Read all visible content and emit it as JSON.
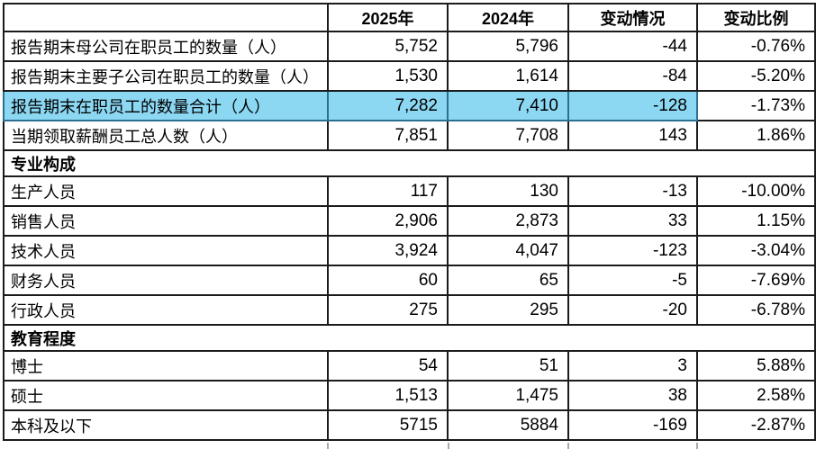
{
  "table": {
    "header": {
      "cols": [
        "",
        "2025年",
        "2024年",
        "变动情况",
        "变动比例"
      ]
    },
    "rows": [
      {
        "label": "报告期末母公司在职员工的数量（人）",
        "y2025": "5,752",
        "y2024": "5,796",
        "change": "-44",
        "ratio": "-0.76%"
      },
      {
        "label": "报告期末主要子公司在职员工的数量（人）",
        "y2025": "1,530",
        "y2024": "1,614",
        "change": "-84",
        "ratio": "-5.20%"
      },
      {
        "label": "报告期末在职员工的数量合计（人）",
        "y2025": "7,282",
        "y2024": "7,410",
        "change": "-128",
        "ratio": "-1.73%",
        "highlight": true
      },
      {
        "label": "当期领取薪酬员工总人数（人）",
        "y2025": "7,851",
        "y2024": "7,708",
        "change": "143",
        "ratio": "1.86%"
      },
      {
        "section": "专业构成"
      },
      {
        "label": "生产人员",
        "y2025": "117",
        "y2024": "130",
        "change": "-13",
        "ratio": "-10.00%"
      },
      {
        "label": "销售人员",
        "y2025": "2,906",
        "y2024": "2,873",
        "change": "33",
        "ratio": "1.15%"
      },
      {
        "label": "技术人员",
        "y2025": "3,924",
        "y2024": "4,047",
        "change": "-123",
        "ratio": "-3.04%"
      },
      {
        "label": "财务人员",
        "y2025": "60",
        "y2024": "65",
        "change": "-5",
        "ratio": "-7.69%"
      },
      {
        "label": "行政人员",
        "y2025": "275",
        "y2024": "295",
        "change": "-20",
        "ratio": "-6.78%"
      },
      {
        "section": "教育程度"
      },
      {
        "label": "博士",
        "y2025": "54",
        "y2024": "51",
        "change": "3",
        "ratio": "5.88%"
      },
      {
        "label": "硕士",
        "y2025": "1,513",
        "y2024": "1,475",
        "change": "38",
        "ratio": "2.58%"
      },
      {
        "label": "本科及以下",
        "y2025": "5715",
        "y2024": "5884",
        "change": "-169",
        "ratio": "-2.87%"
      }
    ]
  },
  "colors": {
    "border": "#1b1b1b",
    "highlight": "#8cd8f3",
    "highlight_border": "#2c6f90",
    "red": "#f40000",
    "purple": "#9b45d3"
  }
}
